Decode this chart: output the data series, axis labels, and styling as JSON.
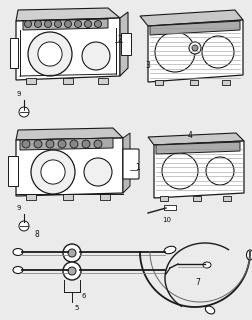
{
  "background_color": "#ebebeb",
  "line_color": "#1a1a1a",
  "label_color": "#111111",
  "fig_width": 2.53,
  "fig_height": 3.2,
  "dpi": 100
}
